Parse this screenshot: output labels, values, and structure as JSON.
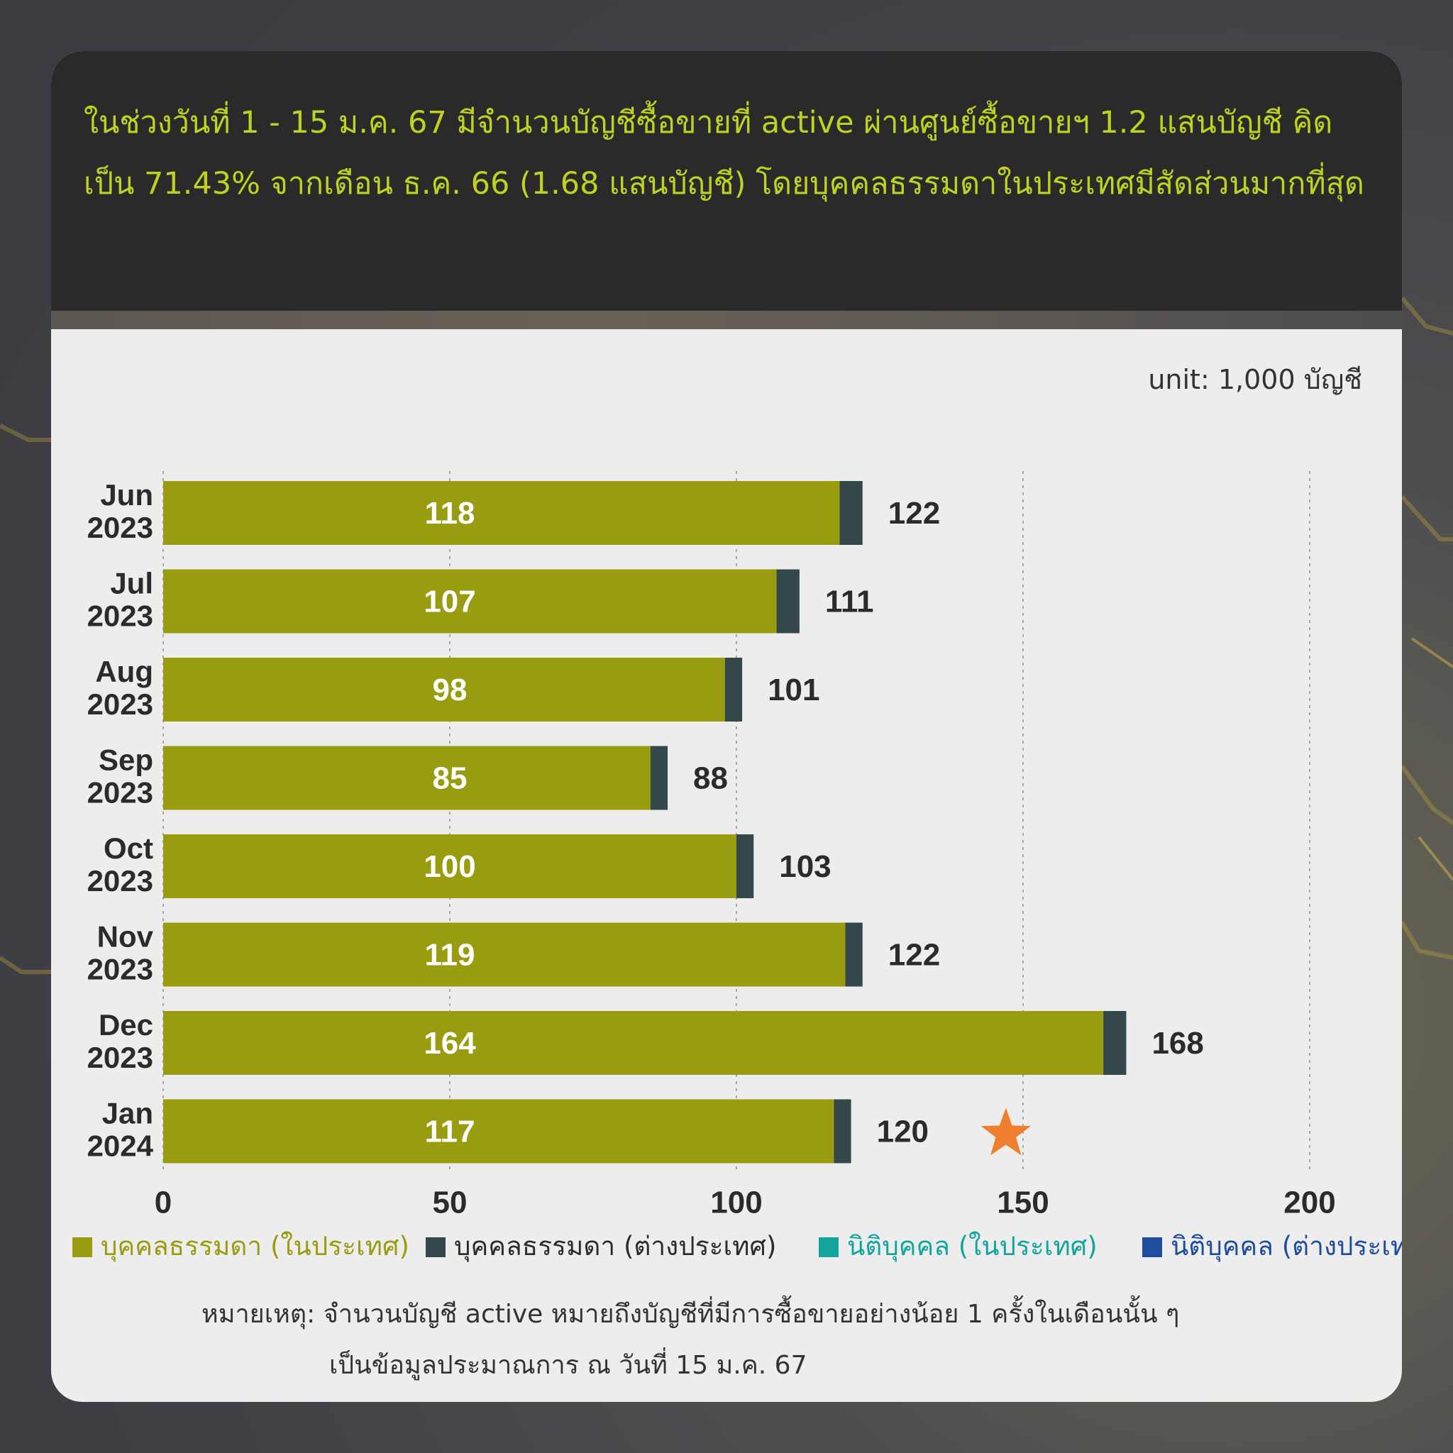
{
  "header": {
    "headline": "ในช่วงวันที่ 1 - 15 ม.ค. 67 มีจำนวนบัญชีซื้อขายที่ active ผ่านศูนย์ซื้อขายฯ 1.2 แสนบัญชี คิดเป็น 71.43% จากเดือน ธ.ค. 66 (1.68 แสนบัญชี) โดยบุคคลธรรมดาในประเทศมีสัดส่วนมากที่สุด"
  },
  "unit_label": "unit: 1,000 บัญชี",
  "legend": [
    {
      "label": "บุคคลธรรมดา (ในประเทศ)",
      "color": "#989c0e"
    },
    {
      "label": "บุคคลธรรมดา (ต่างประเทศ)",
      "color": "#34474b"
    },
    {
      "label": "นิติบุคคล (ในประเทศ)",
      "color": "#12a59c"
    },
    {
      "label": "นิติบุคคล (ต่างประเทศ)",
      "color": "#1f4c9c"
    }
  ],
  "note": {
    "line1": "หมายเหตุ: จำนวนบัญชี active หมายถึงบัญชีที่มีการซื้อขายอย่างน้อย 1 ครั้งในเดือนนั้น ๆ",
    "line2": "เป็นข้อมูลประมาณการ ณ วันที่ 15 ม.ค. 67"
  },
  "chart_data": {
    "type": "bar",
    "orientation": "horizontal",
    "stacked": true,
    "categories": [
      [
        "Jun",
        "2023"
      ],
      [
        "Jul",
        "2023"
      ],
      [
        "Aug",
        "2023"
      ],
      [
        "Sep",
        "2023"
      ],
      [
        "Oct",
        "2023"
      ],
      [
        "Nov",
        "2023"
      ],
      [
        "Dec",
        "2023"
      ],
      [
        "Jan",
        "2024"
      ]
    ],
    "series": [
      {
        "name": "บุคคลธรรมดา (ในประเทศ)",
        "color": "#989c0e",
        "values": [
          118,
          107,
          98,
          85,
          100,
          119,
          164,
          117
        ]
      },
      {
        "name": "บุคคลธรรมดา (ต่างประเทศ)",
        "color": "#34474b",
        "values": [
          4,
          4,
          3,
          3,
          3,
          3,
          4,
          3
        ]
      },
      {
        "name": "นิติบุคคล (ในประเทศ)",
        "color": "#12a59c",
        "values": [
          0,
          0,
          0,
          0,
          0,
          0,
          0,
          0
        ]
      },
      {
        "name": "นิติบุคคล (ต่างประเทศ)",
        "color": "#1f4c9c",
        "values": [
          0,
          0,
          0,
          0,
          0,
          0,
          0,
          0
        ]
      }
    ],
    "inner_labels": [
      "118",
      "107",
      "98",
      "85",
      "100",
      "119",
      "164",
      "117"
    ],
    "totals": [
      "122",
      "111",
      "101",
      "88",
      "103",
      "122",
      "168",
      "120"
    ],
    "highlight": {
      "category_index": 7,
      "marker": "star",
      "color": "#ef7f2e"
    },
    "xlim": [
      0,
      200
    ],
    "xticks": [
      "0",
      "50",
      "100",
      "150",
      "200"
    ],
    "grid": "vertical-dotted"
  }
}
